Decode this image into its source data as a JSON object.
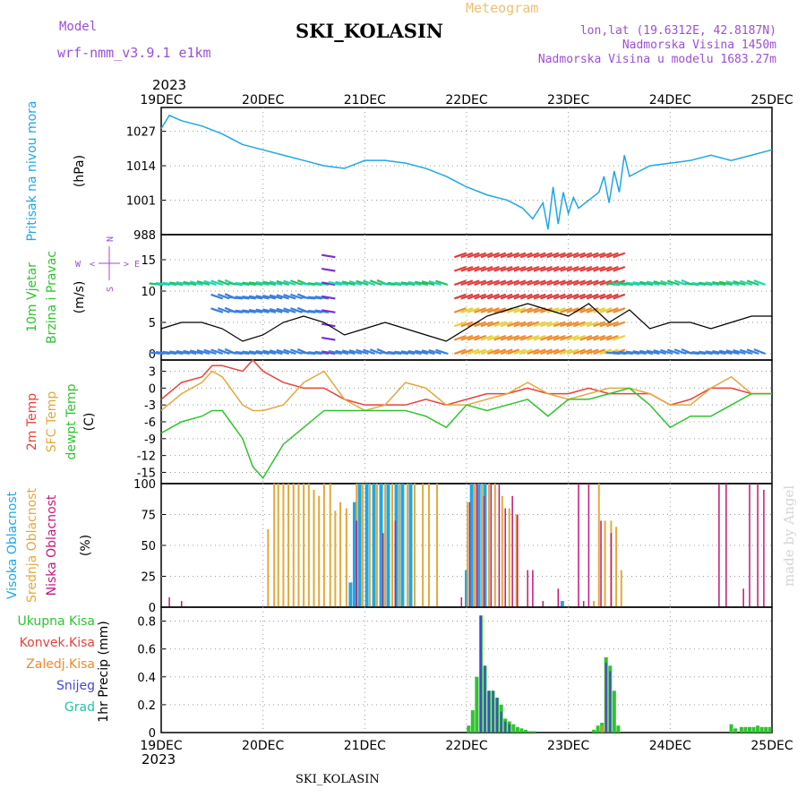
{
  "header": {
    "model_label": "Model",
    "model_name": "wrf-nmm_v3.9.1 e1km",
    "station_title": "SKI_KOLASIN",
    "product_title": "Meteogram",
    "lonlat": "lon,lat (19.6312E, 42.8187N)",
    "elevation": "Nadmorska Visina 1450m",
    "model_elevation": "Nadmorska Visina u modelu 1683.27m",
    "watermark": "made by Angel",
    "footer_station": "SKI_KOLASIN"
  },
  "time_axis": {
    "year_top": "2023",
    "year_bottom": "2023",
    "ticks": [
      "19DEC",
      "20DEC",
      "21DEC",
      "22DEC",
      "23DEC",
      "24DEC",
      "25DEC"
    ]
  },
  "colors": {
    "pressure": "#1ea7e6",
    "temp2m": "#e8423a",
    "sfc_temp": "#e3a93c",
    "dewpoint": "#2ec42e",
    "high_cloud": "#1ea7e6",
    "mid_cloud": "#e3a93c",
    "low_cloud": "#c2187a",
    "total_precip": "#2ec42e",
    "snow": "#4444dd",
    "title_purple": "#9b4fd6",
    "product_orange": "#f0c070"
  },
  "chart_data": [
    {
      "type": "line",
      "panel": "pressure",
      "ylabel": "Pritisak na nivou mora",
      "unit": "(hPa)",
      "yticks": [
        "1027",
        "1014",
        "1001",
        "988"
      ],
      "ylim": [
        988,
        1036
      ],
      "x_days": [
        0,
        0.08,
        0.2,
        0.4,
        0.6,
        0.8,
        1.0,
        1.2,
        1.4,
        1.6,
        1.8,
        2.0,
        2.2,
        2.4,
        2.6,
        2.8,
        3.0,
        3.2,
        3.4,
        3.55,
        3.65,
        3.75,
        3.8,
        3.85,
        3.9,
        3.95,
        4.0,
        4.05,
        4.1,
        4.2,
        4.3,
        4.35,
        4.4,
        4.45,
        4.5,
        4.55,
        4.6,
        4.7,
        4.8,
        5.0,
        5.2,
        5.4,
        5.6,
        5.8,
        6.0
      ],
      "series": [
        {
          "name": "Pritisak na nivou mora",
          "values": [
            1028,
            1033,
            1031,
            1029,
            1026,
            1022,
            1020,
            1018,
            1016,
            1014,
            1013,
            1016,
            1016,
            1015,
            1013,
            1010,
            1006,
            1003,
            1001,
            998,
            994,
            1000,
            990,
            1006,
            992,
            1004,
            996,
            1002,
            998,
            1001,
            1004,
            1010,
            1000,
            1012,
            1004,
            1018,
            1010,
            1012,
            1014,
            1015,
            1016,
            1018,
            1016,
            1018,
            1020
          ]
        }
      ]
    },
    {
      "type": "line",
      "panel": "wind",
      "ylabel": "10m Vjetar",
      "ylabel2": "Brzina i Pravac",
      "unit": "(m/s)",
      "yticks": [
        "15",
        "10",
        "5",
        "0"
      ],
      "ylim": [
        -1,
        19
      ],
      "compass_labels": [
        "W",
        "N",
        "S",
        "E"
      ],
      "compass_arrows": [
        "<",
        ">",
        "-",
        "-"
      ],
      "x_days": [
        0,
        0.2,
        0.4,
        0.6,
        0.8,
        1.0,
        1.2,
        1.4,
        1.6,
        1.8,
        2.0,
        2.2,
        2.4,
        2.6,
        2.8,
        3.0,
        3.2,
        3.4,
        3.6,
        3.8,
        4.0,
        4.2,
        4.4,
        4.6,
        4.8,
        5.0,
        5.2,
        5.4,
        5.6,
        5.8,
        6.0
      ],
      "series": [
        {
          "name": "10m Vjetar",
          "values": [
            4,
            5,
            5,
            4,
            2,
            3,
            5,
            6,
            5,
            3,
            4,
            5,
            4,
            3,
            2,
            4,
            6,
            7,
            8,
            7,
            6,
            8,
            5,
            7,
            4,
            5,
            5,
            4,
            5,
            6,
            6
          ]
        }
      ]
    },
    {
      "type": "line",
      "panel": "temperature",
      "ylabels": [
        "2m Temp",
        "SFC Temp",
        "dewpt Temp"
      ],
      "unit": "(C)",
      "yticks": [
        "3",
        "0",
        "-3",
        "-6",
        "-9",
        "-12",
        "-15"
      ],
      "ylim": [
        -17,
        5
      ],
      "x_days": [
        0,
        0.2,
        0.4,
        0.5,
        0.6,
        0.8,
        0.9,
        1.0,
        1.2,
        1.4,
        1.6,
        1.8,
        2.0,
        2.2,
        2.4,
        2.6,
        2.8,
        3.0,
        3.2,
        3.4,
        3.6,
        3.8,
        4.0,
        4.2,
        4.4,
        4.6,
        4.8,
        5.0,
        5.2,
        5.4,
        5.6,
        5.8,
        6.0
      ],
      "series": [
        {
          "name": "2m Temp",
          "values": [
            -2,
            1,
            2,
            4,
            4,
            3,
            5,
            3,
            1,
            0,
            0,
            -2,
            -3,
            -3,
            -3,
            -2,
            -3,
            -2,
            -1,
            -1,
            0,
            -1,
            -1,
            0,
            -1,
            -1,
            -1,
            -3,
            -2,
            0,
            0,
            -1,
            -1
          ]
        },
        {
          "name": "SFC Temp",
          "values": [
            -4,
            -1,
            1,
            3,
            2,
            -3,
            -4,
            -4,
            -3,
            1,
            3,
            -2,
            -4,
            -3,
            1,
            0,
            -3,
            -3,
            -2,
            -1,
            1,
            -1,
            -2,
            -1,
            0,
            0,
            -1,
            -3,
            -3,
            0,
            2,
            -1,
            -1
          ]
        },
        {
          "name": "dewpt Temp",
          "values": [
            -8,
            -6,
            -5,
            -4,
            -4,
            -9,
            -14,
            -16,
            -10,
            -7,
            -4,
            -4,
            -4,
            -4,
            -4,
            -5,
            -7,
            -3,
            -4,
            -3,
            -2,
            -5,
            -2,
            -2,
            -1,
            0,
            -3,
            -7,
            -5,
            -5,
            -3,
            -1,
            -1
          ]
        }
      ]
    },
    {
      "type": "bar",
      "panel": "cloud",
      "ylabels": [
        "Visoka Oblacnost",
        "Srednja Oblacnost",
        "Niska Oblacnost"
      ],
      "unit": "(%)",
      "yticks": [
        "100",
        "75",
        "50",
        "25",
        "0"
      ],
      "ylim": [
        0,
        100
      ],
      "series": [
        {
          "name": "Visoka Oblacnost",
          "x_days": [
            1.86,
            1.9,
            1.95,
            2.02,
            2.09,
            2.16,
            2.23,
            2.31,
            2.37,
            2.45,
            3.0,
            3.05,
            3.12,
            3.18,
            3.94
          ],
          "values": [
            20,
            85,
            100,
            100,
            100,
            100,
            100,
            100,
            100,
            100,
            30,
            100,
            100,
            100,
            5
          ]
        },
        {
          "name": "Srednja Oblacnost",
          "x_days": [
            1.05,
            1.11,
            1.15,
            1.2,
            1.25,
            1.3,
            1.35,
            1.4,
            1.45,
            1.5,
            1.55,
            1.6,
            1.66,
            1.71,
            1.76,
            1.82,
            1.92,
            1.98,
            2.05,
            2.12,
            2.2,
            2.27,
            2.34,
            2.42,
            2.49,
            2.57,
            2.63,
            2.71,
            3.01,
            3.08,
            3.15,
            3.22,
            3.28,
            3.35,
            3.42,
            3.49,
            4.25,
            4.3,
            4.36,
            4.42,
            4.47,
            4.52
          ],
          "values": [
            63,
            100,
            100,
            100,
            100,
            100,
            100,
            100,
            100,
            95,
            90,
            100,
            100,
            78,
            85,
            80,
            100,
            100,
            100,
            100,
            100,
            100,
            100,
            100,
            100,
            100,
            100,
            100,
            85,
            100,
            100,
            100,
            100,
            90,
            80,
            75,
            5,
            100,
            70,
            70,
            65,
            30
          ]
        },
        {
          "name": "Niska Oblacnost",
          "x_days": [
            0.08,
            0.2,
            1.92,
            2.18,
            2.3,
            2.95,
            3.03,
            3.1,
            3.17,
            3.24,
            3.32,
            3.38,
            3.45,
            3.5,
            3.6,
            3.65,
            3.75,
            3.9,
            4.1,
            4.15,
            4.2,
            4.32,
            4.42,
            5.48,
            5.55,
            5.72,
            5.78,
            5.86,
            5.92
          ],
          "values": [
            8,
            5,
            70,
            60,
            70,
            8,
            85,
            100,
            90,
            100,
            100,
            80,
            90,
            75,
            30,
            30,
            5,
            15,
            100,
            5,
            100,
            70,
            60,
            100,
            100,
            15,
            100,
            100,
            95
          ]
        }
      ]
    },
    {
      "type": "bar",
      "panel": "precipitation",
      "ylabels": [
        "Ukupna Kisa",
        "Konvek.Kisa",
        "Zaledj.Kisa",
        "Snijeg",
        "Grad"
      ],
      "ylabel_axis": "1hr Precip (mm)",
      "yticks": [
        "0.8",
        "0.6",
        "0.4",
        "0.2",
        "0"
      ],
      "ylim": [
        0,
        0.9
      ],
      "series": [
        {
          "name": "Ukupna Kisa",
          "x_days": [
            3.02,
            3.06,
            3.1,
            3.14,
            3.18,
            3.22,
            3.26,
            3.3,
            3.34,
            3.38,
            3.42,
            3.46,
            3.5,
            3.54,
            3.58,
            3.62,
            3.66,
            4.25,
            4.29,
            4.33,
            4.37,
            4.41,
            4.45,
            4.49,
            5.6,
            5.64,
            5.7,
            5.74,
            5.78,
            5.82,
            5.86,
            5.9,
            5.94,
            5.98
          ],
          "values": [
            0.05,
            0.16,
            0.4,
            0.84,
            0.48,
            0.3,
            0.3,
            0.25,
            0.2,
            0.1,
            0.08,
            0.06,
            0.04,
            0.03,
            0.02,
            0.01,
            0.01,
            0.02,
            0.05,
            0.07,
            0.54,
            0.48,
            0.3,
            0.05,
            0.06,
            0.03,
            0.04,
            0.04,
            0.04,
            0.04,
            0.05,
            0.04,
            0.04,
            0.04
          ]
        },
        {
          "name": "Konvek.Kisa",
          "x_days": [
            3.18,
            3.26,
            4.37
          ],
          "values": [
            0.2,
            0.1,
            0.4
          ]
        },
        {
          "name": "Zaledj.Kisa",
          "x_days": [
            4.33,
            4.37,
            4.41
          ],
          "values": [
            0.05,
            0.45,
            0.4
          ]
        },
        {
          "name": "Snijeg",
          "x_days": [
            3.14,
            3.18,
            3.22,
            3.26,
            3.3,
            3.34,
            3.38,
            3.42,
            4.37,
            4.41
          ],
          "values": [
            0.84,
            0.48,
            0.3,
            0.3,
            0.25,
            0.15,
            0.08,
            0.06,
            0.5,
            0.44
          ]
        },
        {
          "name": "Grad",
          "x_days": [],
          "values": []
        }
      ]
    }
  ]
}
